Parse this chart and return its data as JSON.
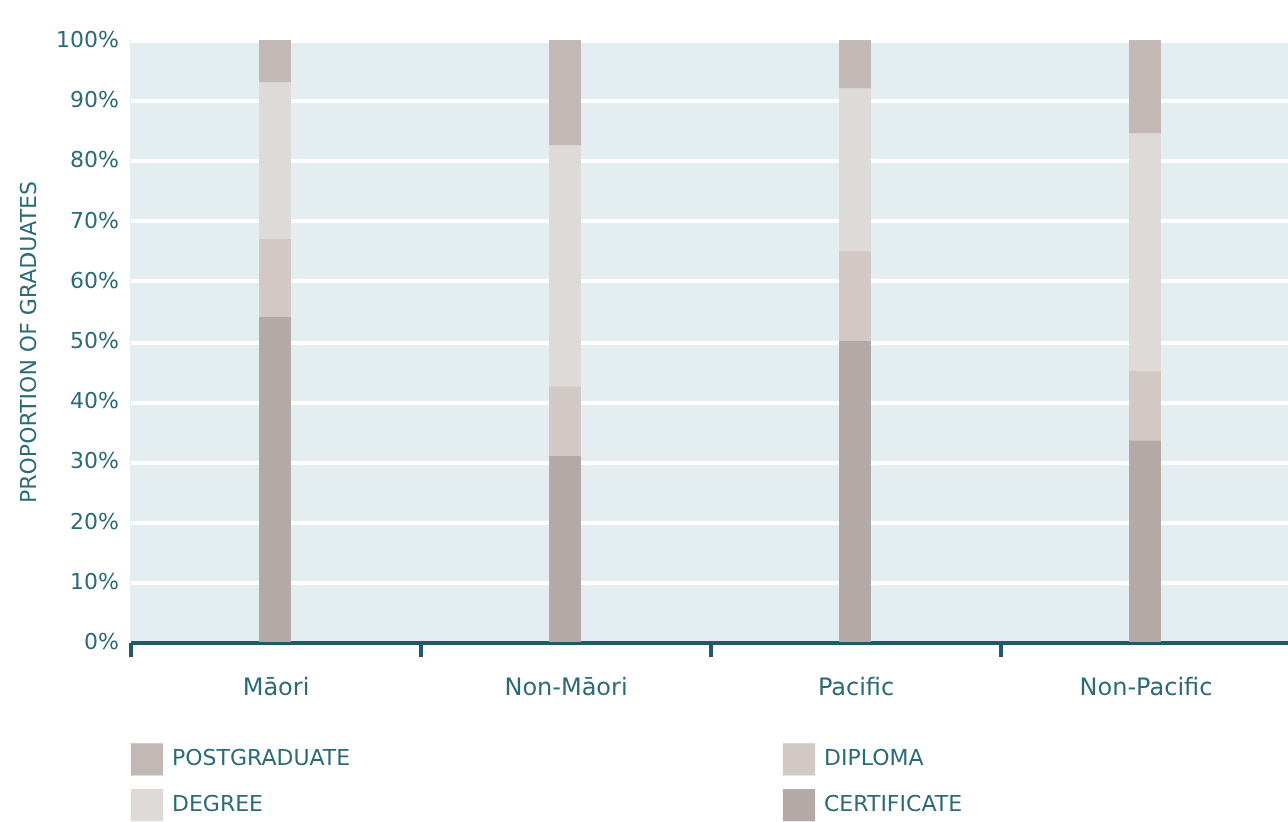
{
  "chart_data": {
    "type": "bar",
    "stacked": true,
    "ylabel": "PROPORTION OF GRADUATES",
    "categories": [
      "Māori",
      "Non-Māori",
      "Pacific",
      "Non-Pacific"
    ],
    "series": [
      {
        "name": "CERTIFICATE",
        "color": "#b3aaa7",
        "values": [
          54,
          31,
          50,
          33.5
        ]
      },
      {
        "name": "DIPLOMA",
        "color": "#d2c9c6",
        "values": [
          13,
          11.5,
          15,
          11.5
        ]
      },
      {
        "name": "DEGREE",
        "color": "#dedad8",
        "values": [
          26,
          40,
          27,
          39.5
        ]
      },
      {
        "name": "POSTGRADUATE",
        "color": "#c2b8b5",
        "values": [
          7,
          17.5,
          8,
          15.5
        ]
      }
    ],
    "ylim": [
      0,
      100
    ],
    "yticks": [
      {
        "value": 0,
        "label": "0%"
      },
      {
        "value": 10,
        "label": "10%"
      },
      {
        "value": 20,
        "label": "20%"
      },
      {
        "value": 30,
        "label": "30%"
      },
      {
        "value": 40,
        "label": "40%"
      },
      {
        "value": 50,
        "label": "50%"
      },
      {
        "value": 60,
        "label": "60%"
      },
      {
        "value": 70,
        "label": "70%"
      },
      {
        "value": 80,
        "label": "80%"
      },
      {
        "value": 90,
        "label": "90%"
      },
      {
        "value": 100,
        "label": "100%"
      }
    ],
    "grid": "y",
    "legend": "bottom"
  }
}
